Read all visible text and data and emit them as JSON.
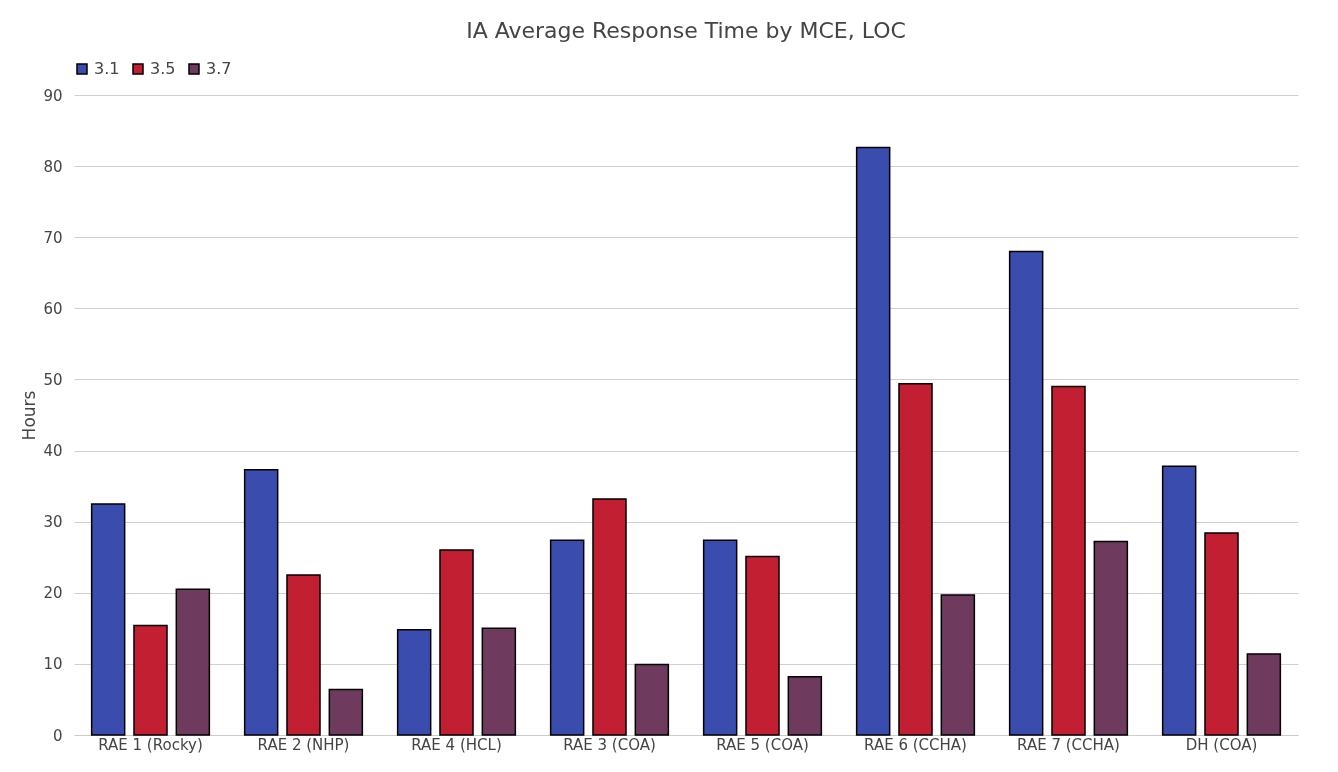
{
  "chart_data": {
    "type": "bar",
    "title": "IA Average Response Time by MCE, LOC",
    "ylabel": "Hours",
    "categories": [
      "RAE 1 (Rocky)",
      "RAE 2 (NHP)",
      "RAE 4 (HCL)",
      "RAE 3 (COA)",
      "RAE 5 (COA)",
      "RAE 6 (CCHA)",
      "RAE 7 (CCHA)",
      "DH (COA)"
    ],
    "series": [
      {
        "name": "3.1",
        "color": "#3a4dae",
        "values": [
          32.5,
          37.3,
          14.8,
          27.4,
          27.4,
          82.6,
          68,
          37.8
        ]
      },
      {
        "name": "3.5",
        "color": "#c21f32",
        "values": [
          15.4,
          22.5,
          26,
          33.2,
          25.1,
          49.4,
          49,
          28.4
        ]
      },
      {
        "name": "3.7",
        "color": "#6e3a5e",
        "values": [
          20.5,
          6.4,
          15,
          9.9,
          8.2,
          19.7,
          27.2,
          11.4
        ]
      }
    ],
    "ylim": [
      0,
      90
    ],
    "yticks": [
      0,
      10,
      20,
      30,
      40,
      50,
      60,
      70,
      80,
      90
    ],
    "grid": "y",
    "legend": "top"
  }
}
